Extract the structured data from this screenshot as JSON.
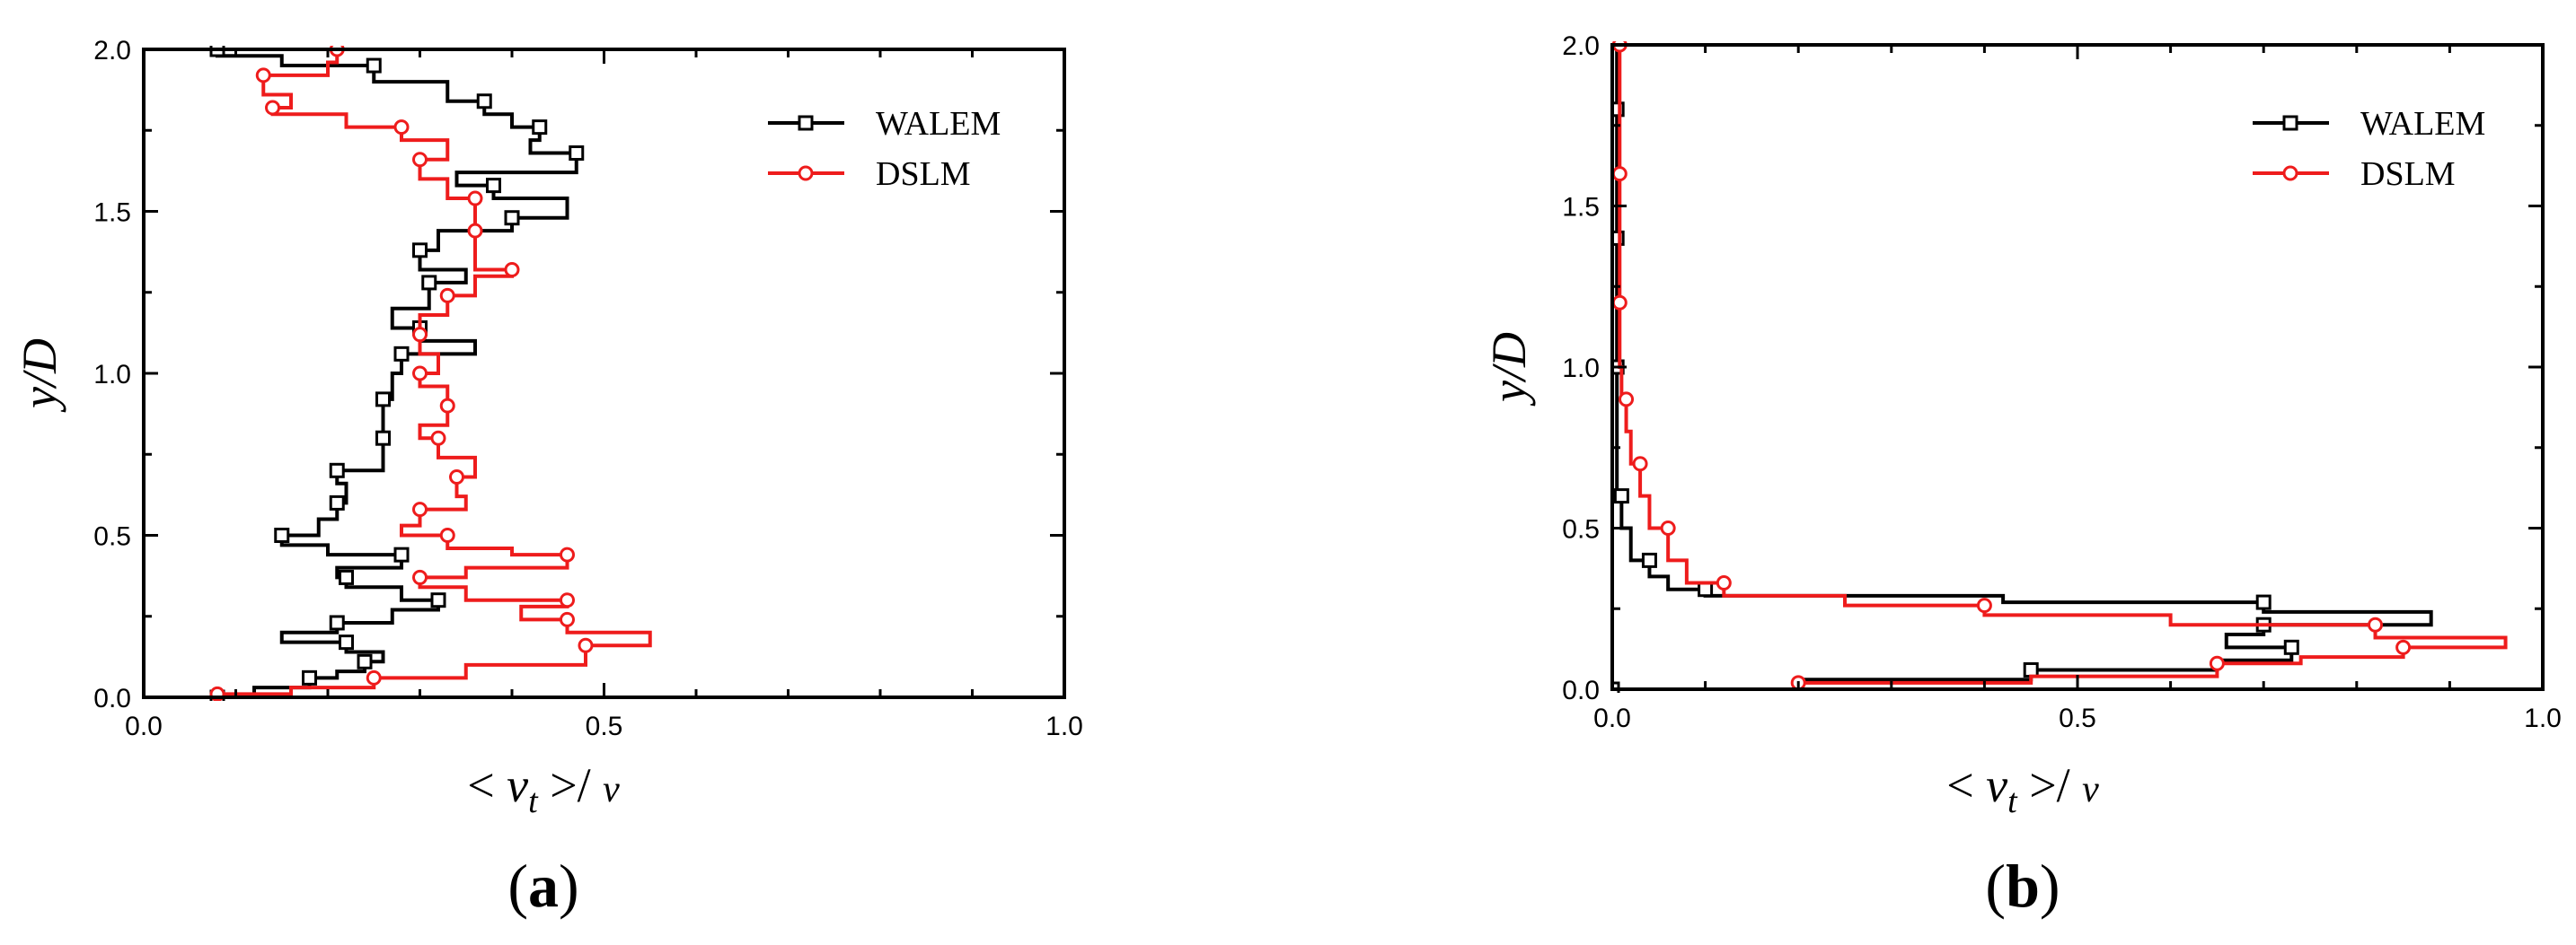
{
  "chart_data": [
    {
      "type": "line",
      "panel_label": "a",
      "xlabel": "< v_t >/ v",
      "ylabel": "y/D",
      "xlim": [
        0,
        1
      ],
      "ylim": [
        0,
        2
      ],
      "x_ticks": [
        "0.0",
        "0.5",
        "1.0"
      ],
      "y_ticks": [
        "0.0",
        "0.5",
        "1.0",
        "1.5",
        "2.0"
      ],
      "legend_position": "top-right",
      "series": [
        {
          "name": "WALEM",
          "color": "#000000",
          "marker": "square",
          "points": [
            [
              0.08,
              0.0
            ],
            [
              0.12,
              0.03
            ],
            [
              0.18,
              0.06
            ],
            [
              0.21,
              0.08
            ],
            [
              0.24,
              0.11
            ],
            [
              0.26,
              0.14
            ],
            [
              0.22,
              0.17
            ],
            [
              0.15,
              0.2
            ],
            [
              0.21,
              0.23
            ],
            [
              0.27,
              0.27
            ],
            [
              0.32,
              0.3
            ],
            [
              0.28,
              0.34
            ],
            [
              0.22,
              0.37
            ],
            [
              0.21,
              0.4
            ],
            [
              0.28,
              0.44
            ],
            [
              0.2,
              0.47
            ],
            [
              0.15,
              0.5
            ],
            [
              0.19,
              0.55
            ],
            [
              0.21,
              0.6
            ],
            [
              0.22,
              0.66
            ],
            [
              0.21,
              0.7
            ],
            [
              0.26,
              0.74
            ],
            [
              0.26,
              0.8
            ],
            [
              0.26,
              0.86
            ],
            [
              0.26,
              0.92
            ],
            [
              0.27,
              1.0
            ],
            [
              0.28,
              1.06
            ],
            [
              0.36,
              1.1
            ],
            [
              0.3,
              1.14
            ],
            [
              0.27,
              1.2
            ],
            [
              0.31,
              1.28
            ],
            [
              0.35,
              1.32
            ],
            [
              0.3,
              1.38
            ],
            [
              0.32,
              1.44
            ],
            [
              0.4,
              1.48
            ],
            [
              0.46,
              1.54
            ],
            [
              0.38,
              1.58
            ],
            [
              0.34,
              1.62
            ],
            [
              0.47,
              1.68
            ],
            [
              0.42,
              1.72
            ],
            [
              0.43,
              1.76
            ],
            [
              0.4,
              1.8
            ],
            [
              0.37,
              1.84
            ],
            [
              0.33,
              1.9
            ],
            [
              0.25,
              1.95
            ],
            [
              0.15,
              1.98
            ],
            [
              0.08,
              2.0
            ]
          ]
        },
        {
          "name": "DSLM",
          "color": "#ee1c1c",
          "marker": "circle",
          "points": [
            [
              0.01,
              0.0
            ],
            [
              0.08,
              0.01
            ],
            [
              0.16,
              0.03
            ],
            [
              0.25,
              0.06
            ],
            [
              0.35,
              0.1
            ],
            [
              0.48,
              0.16
            ],
            [
              0.55,
              0.2
            ],
            [
              0.46,
              0.24
            ],
            [
              0.41,
              0.28
            ],
            [
              0.46,
              0.3
            ],
            [
              0.35,
              0.34
            ],
            [
              0.3,
              0.37
            ],
            [
              0.35,
              0.4
            ],
            [
              0.46,
              0.44
            ],
            [
              0.4,
              0.46
            ],
            [
              0.33,
              0.5
            ],
            [
              0.28,
              0.53
            ],
            [
              0.3,
              0.58
            ],
            [
              0.35,
              0.62
            ],
            [
              0.34,
              0.68
            ],
            [
              0.36,
              0.74
            ],
            [
              0.32,
              0.8
            ],
            [
              0.3,
              0.84
            ],
            [
              0.33,
              0.9
            ],
            [
              0.33,
              0.96
            ],
            [
              0.3,
              1.0
            ],
            [
              0.32,
              1.06
            ],
            [
              0.3,
              1.12
            ],
            [
              0.3,
              1.18
            ],
            [
              0.33,
              1.24
            ],
            [
              0.36,
              1.3
            ],
            [
              0.4,
              1.32
            ],
            [
              0.36,
              1.38
            ],
            [
              0.36,
              1.44
            ],
            [
              0.36,
              1.48
            ],
            [
              0.36,
              1.54
            ],
            [
              0.33,
              1.6
            ],
            [
              0.3,
              1.66
            ],
            [
              0.33,
              1.72
            ],
            [
              0.28,
              1.76
            ],
            [
              0.22,
              1.8
            ],
            [
              0.14,
              1.82
            ],
            [
              0.16,
              1.86
            ],
            [
              0.13,
              1.92
            ],
            [
              0.2,
              1.96
            ],
            [
              0.21,
              2.0
            ]
          ]
        }
      ]
    },
    {
      "type": "line",
      "panel_label": "b",
      "xlabel": "< v_t >/ v",
      "ylabel": "y/D",
      "xlim": [
        0,
        1
      ],
      "ylim": [
        0,
        2
      ],
      "x_ticks": [
        "0.0",
        "0.5",
        "1.0"
      ],
      "y_ticks": [
        "0.0",
        "0.5",
        "1.0",
        "1.5",
        "2.0"
      ],
      "legend_position": "top-right",
      "series": [
        {
          "name": "WALEM",
          "color": "#000000",
          "marker": "square",
          "points": [
            [
              0.0,
              0.0
            ],
            [
              0.2,
              0.03
            ],
            [
              0.45,
              0.06
            ],
            [
              0.65,
              0.09
            ],
            [
              0.73,
              0.13
            ],
            [
              0.66,
              0.17
            ],
            [
              0.7,
              0.2
            ],
            [
              0.88,
              0.24
            ],
            [
              0.7,
              0.27
            ],
            [
              0.42,
              0.29
            ],
            [
              0.1,
              0.31
            ],
            [
              0.06,
              0.35
            ],
            [
              0.04,
              0.4
            ],
            [
              0.02,
              0.5
            ],
            [
              0.01,
              0.6
            ],
            [
              0.005,
              0.8
            ],
            [
              0.005,
              1.0
            ],
            [
              0.005,
              1.2
            ],
            [
              0.005,
              1.4
            ],
            [
              0.005,
              1.6
            ],
            [
              0.005,
              1.8
            ],
            [
              0.005,
              2.0
            ]
          ]
        },
        {
          "name": "DSLM",
          "color": "#ee1c1c",
          "marker": "circle",
          "points": [
            [
              0.0,
              0.0
            ],
            [
              0.2,
              0.02
            ],
            [
              0.45,
              0.04
            ],
            [
              0.65,
              0.08
            ],
            [
              0.74,
              0.1
            ],
            [
              0.85,
              0.13
            ],
            [
              0.96,
              0.16
            ],
            [
              0.82,
              0.2
            ],
            [
              0.6,
              0.23
            ],
            [
              0.4,
              0.26
            ],
            [
              0.25,
              0.29
            ],
            [
              0.12,
              0.33
            ],
            [
              0.08,
              0.4
            ],
            [
              0.06,
              0.5
            ],
            [
              0.04,
              0.6
            ],
            [
              0.03,
              0.7
            ],
            [
              0.02,
              0.8
            ],
            [
              0.015,
              0.9
            ],
            [
              0.01,
              1.0
            ],
            [
              0.008,
              1.2
            ],
            [
              0.008,
              1.4
            ],
            [
              0.008,
              1.6
            ],
            [
              0.008,
              1.8
            ],
            [
              0.008,
              2.0
            ]
          ]
        }
      ]
    }
  ]
}
